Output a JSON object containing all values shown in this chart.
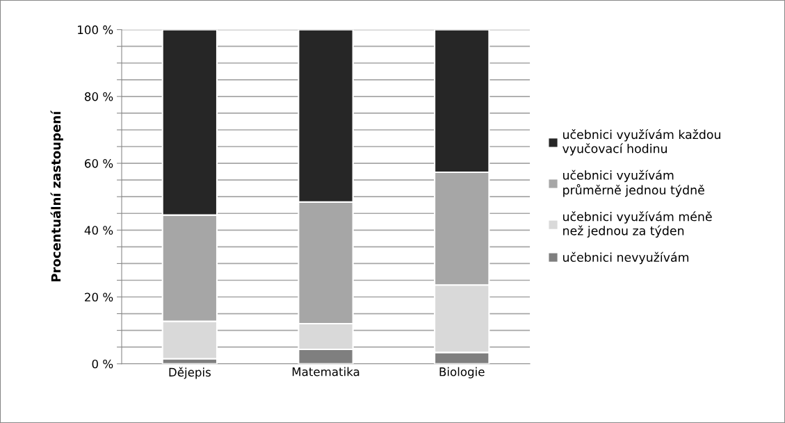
{
  "chart_data": {
    "type": "bar",
    "stacked": true,
    "ylabel": "Procentuální zastoupení",
    "categories": [
      "Dějepis",
      "Matematika",
      "Biologie"
    ],
    "series": [
      {
        "name": "učebnici nevyužívám",
        "color": "#7f7f7f",
        "values": [
          1.5,
          4.3,
          3.4
        ]
      },
      {
        "name": "učebnici využívám méně\nnež jednou za týden",
        "color": "#d9d9d9",
        "values": [
          11.2,
          7.7,
          20.2
        ]
      },
      {
        "name": "učebnici využívám\nprůměrně jednou týdně",
        "color": "#a6a6a6",
        "values": [
          31.8,
          36.4,
          33.7
        ]
      },
      {
        "name": "učebnici využívám každou\nvyučovací hodinu",
        "color": "#262626",
        "values": [
          55.5,
          51.6,
          42.7
        ]
      }
    ],
    "ylim": [
      0,
      100
    ],
    "yticks": [
      {
        "value": 0,
        "label": "0 %"
      },
      {
        "value": 5,
        "label": null
      },
      {
        "value": 10,
        "label": null
      },
      {
        "value": 15,
        "label": null
      },
      {
        "value": 20,
        "label": "20 %"
      },
      {
        "value": 25,
        "label": null
      },
      {
        "value": 30,
        "label": null
      },
      {
        "value": 35,
        "label": null
      },
      {
        "value": 40,
        "label": "40 %"
      },
      {
        "value": 45,
        "label": null
      },
      {
        "value": 50,
        "label": null
      },
      {
        "value": 55,
        "label": null
      },
      {
        "value": 60,
        "label": "60 %"
      },
      {
        "value": 65,
        "label": null
      },
      {
        "value": 70,
        "label": null
      },
      {
        "value": 75,
        "label": null
      },
      {
        "value": 80,
        "label": "80 %"
      },
      {
        "value": 85,
        "label": null
      },
      {
        "value": 90,
        "label": null
      },
      {
        "value": 95,
        "label": null
      },
      {
        "value": 100,
        "label": "100 %"
      }
    ],
    "grid": "y",
    "legend": "right"
  }
}
